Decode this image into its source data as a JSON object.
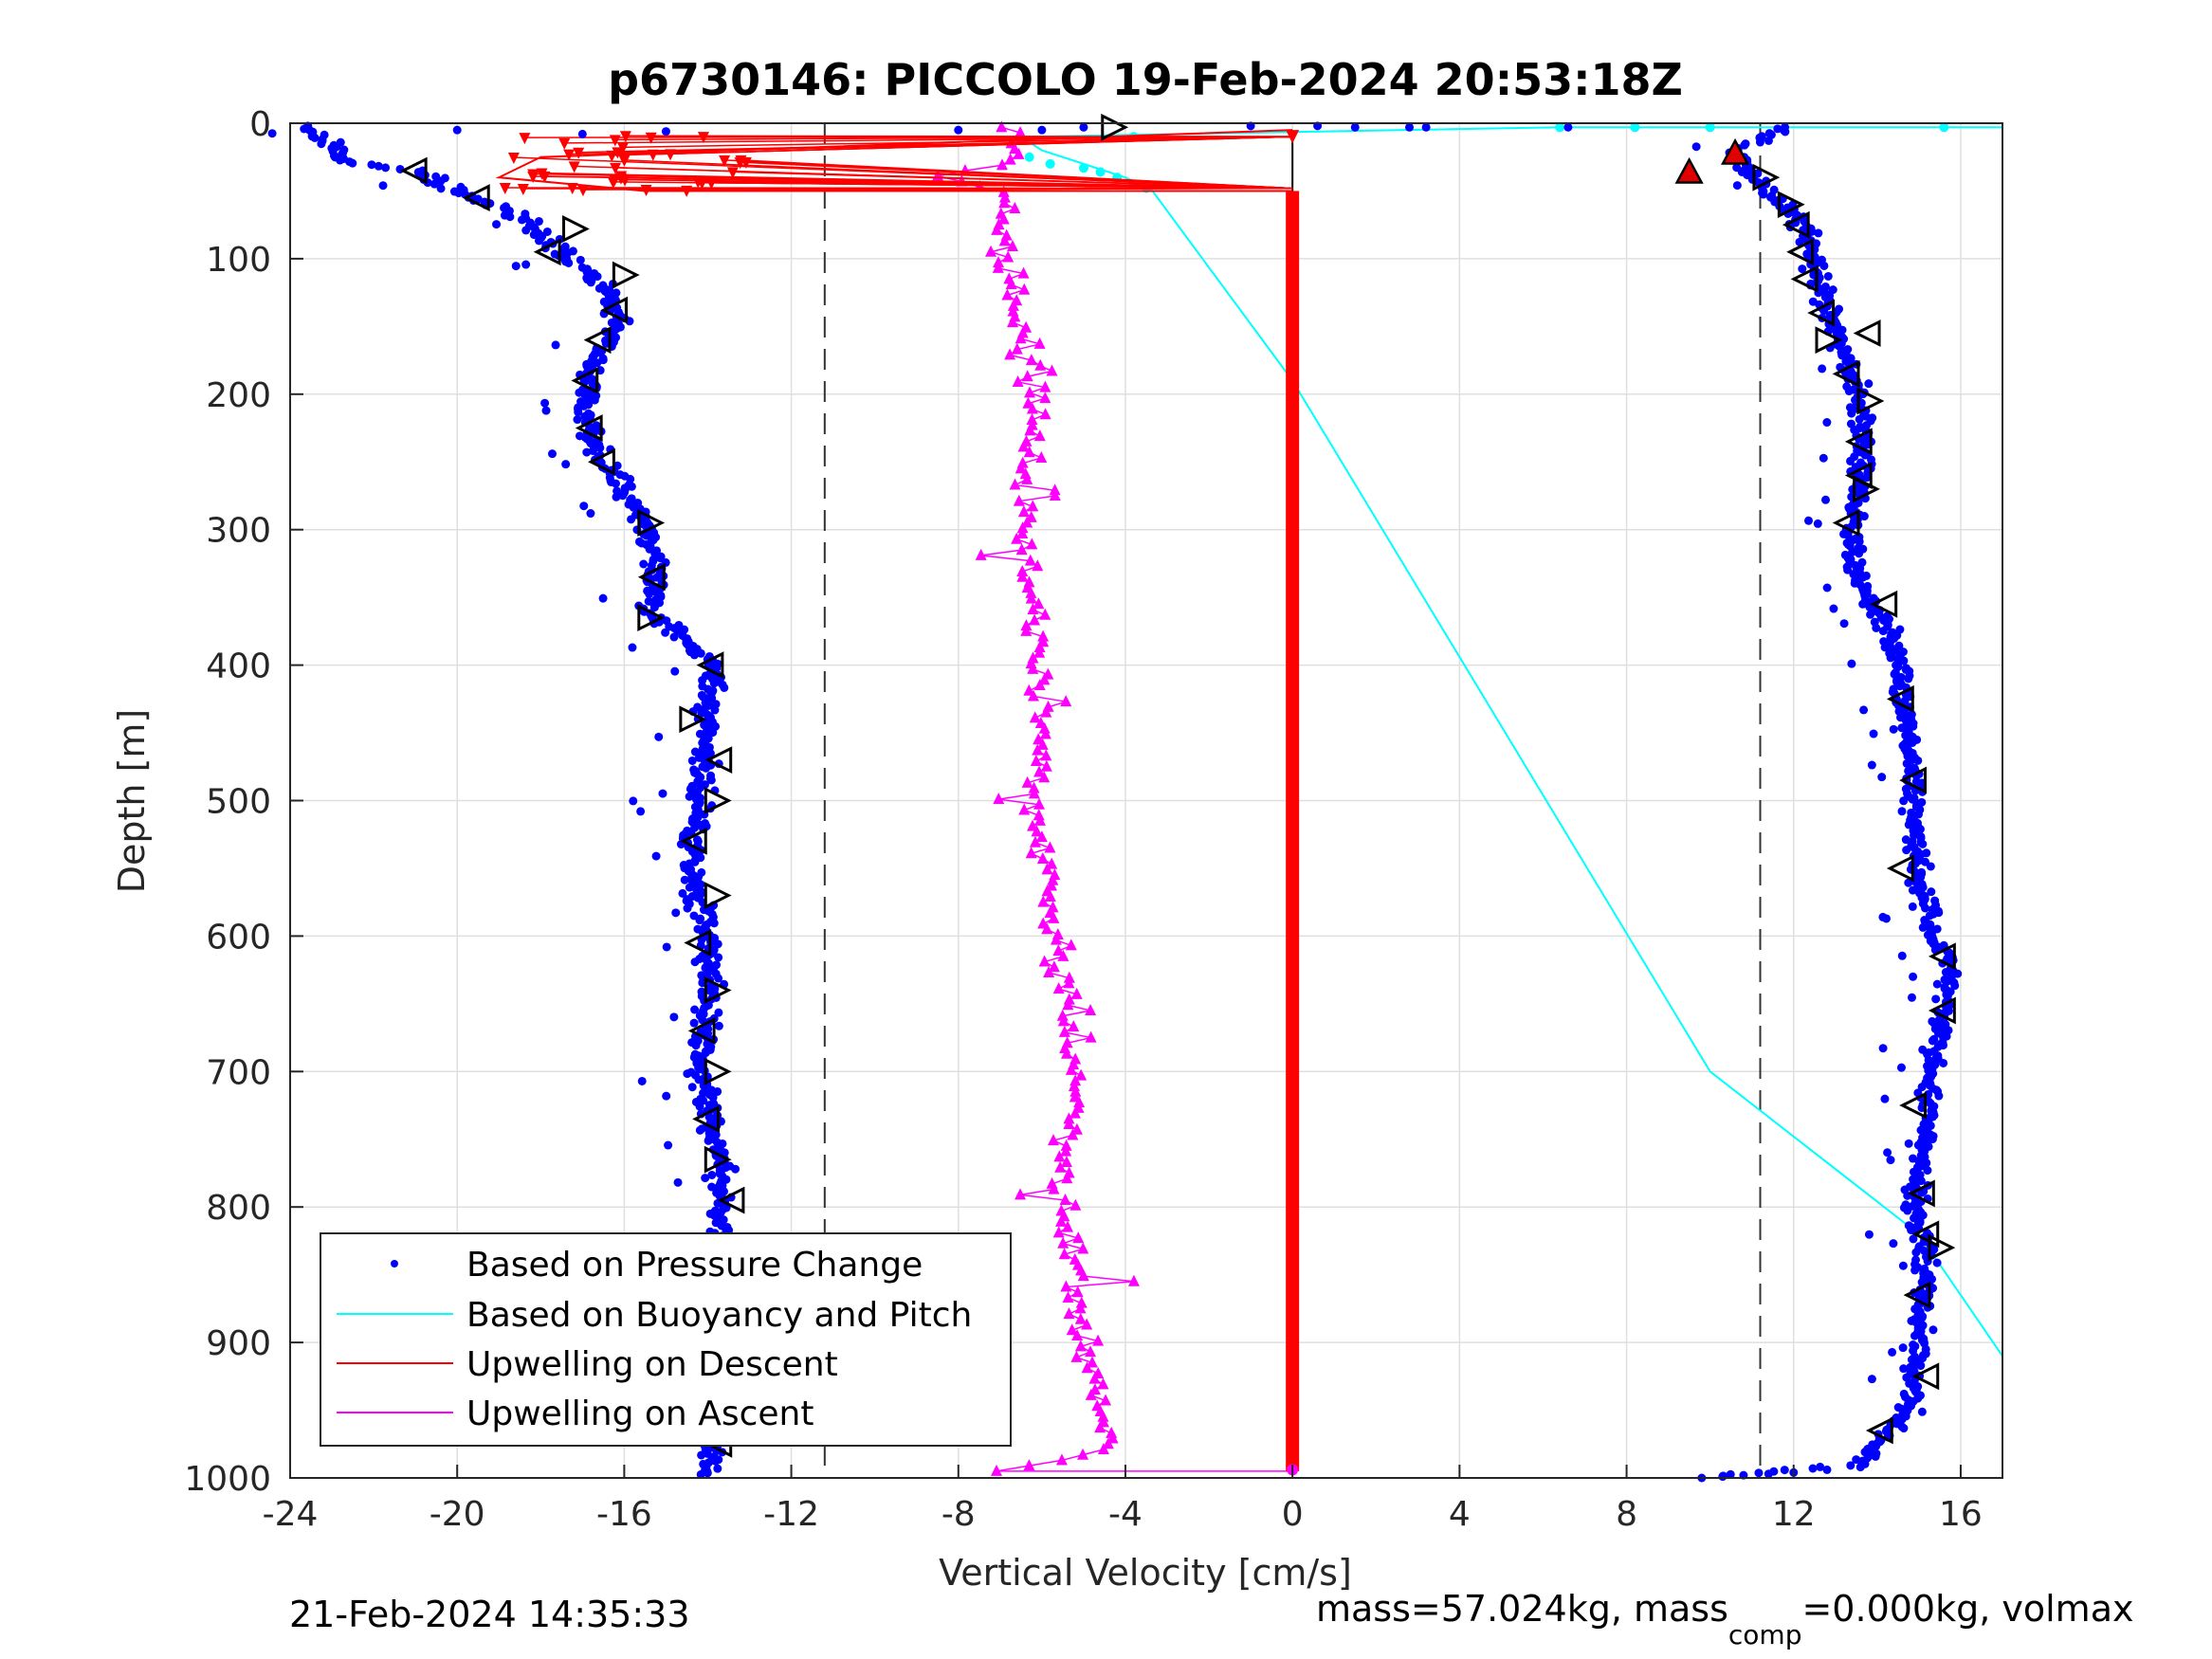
{
  "figure": {
    "timestamp": "21-Feb-2024 14:35:33",
    "footer": {
      "mass_text": "mass=57.024kg, mass",
      "mass_sub": "comp",
      "mass_tail": "=0.000kg, volmax"
    }
  },
  "chart_data": {
    "type": "scatter",
    "title": "p6730146: PICCOLO 19-Feb-2024 20:53:18Z",
    "xlabel": "Vertical Velocity [cm/s]",
    "ylabel": "Depth [m]",
    "xlim": [
      -24,
      17
    ],
    "ylim": [
      1000,
      0
    ],
    "y_reversed": true,
    "grid": true,
    "legend_position": "bottom-left",
    "x_ticks": [
      -24,
      -20,
      -16,
      -12,
      -8,
      -4,
      0,
      4,
      8,
      12,
      16
    ],
    "x_tick_labels": [
      "-24",
      "-20",
      "-16",
      "-12",
      "-8",
      "-4",
      "0",
      "4",
      "8",
      "12",
      "16"
    ],
    "y_ticks": [
      0,
      100,
      200,
      300,
      400,
      500,
      600,
      700,
      800,
      900,
      1000
    ],
    "y_tick_labels": [
      "0",
      "100",
      "200",
      "300",
      "400",
      "500",
      "600",
      "700",
      "800",
      "900",
      "1000"
    ],
    "reference_lines": [
      -11.2,
      11.2
    ],
    "series": [
      {
        "name": "Based on Pressure Change",
        "color": "#0000ff",
        "marker": "dot",
        "style": "points",
        "descent_profile": [
          [
            -23.5,
            5
          ],
          [
            -22.5,
            30
          ],
          [
            -21,
            35
          ],
          [
            -20,
            50
          ],
          [
            -19,
            62
          ],
          [
            -18,
            80
          ],
          [
            -17.5,
            95
          ],
          [
            -16.5,
            120
          ],
          [
            -16.2,
            150
          ],
          [
            -16.8,
            180
          ],
          [
            -17,
            210
          ],
          [
            -16.5,
            250
          ],
          [
            -15.8,
            280
          ],
          [
            -15.4,
            300
          ],
          [
            -15.3,
            330
          ],
          [
            -15.4,
            360
          ],
          [
            -14.5,
            380
          ],
          [
            -13.9,
            400
          ],
          [
            -14,
            450
          ],
          [
            -14.2,
            500
          ],
          [
            -14.4,
            550
          ],
          [
            -14,
            600
          ],
          [
            -14,
            650
          ],
          [
            -14.2,
            700
          ],
          [
            -13.8,
            750
          ],
          [
            -13.6,
            800
          ],
          [
            -13.8,
            850
          ],
          [
            -13.7,
            900
          ],
          [
            -13.8,
            950
          ],
          [
            -14,
            995
          ]
        ],
        "ascent_profile": [
          [
            9.8,
            1000
          ],
          [
            11.5,
            995
          ],
          [
            13.5,
            990
          ],
          [
            14.2,
            970
          ],
          [
            14.8,
            950
          ],
          [
            15,
            900
          ],
          [
            15.2,
            850
          ],
          [
            14.9,
            800
          ],
          [
            15.1,
            750
          ],
          [
            15.3,
            700
          ],
          [
            15.6,
            650
          ],
          [
            15.8,
            620
          ],
          [
            15.3,
            600
          ],
          [
            15,
            550
          ],
          [
            14.9,
            500
          ],
          [
            14.7,
            450
          ],
          [
            14.6,
            400
          ],
          [
            14.2,
            370
          ],
          [
            13.6,
            340
          ],
          [
            13.4,
            320
          ],
          [
            13.4,
            300
          ],
          [
            13.5,
            270
          ],
          [
            13.7,
            240
          ],
          [
            13.6,
            200
          ],
          [
            13.2,
            170
          ],
          [
            12.8,
            140
          ],
          [
            12.5,
            110
          ],
          [
            12.3,
            80
          ],
          [
            11.8,
            60
          ],
          [
            11,
            40
          ],
          [
            10.6,
            20
          ],
          [
            11.8,
            5
          ]
        ],
        "surface_points": [
          [
            -20,
            5
          ],
          [
            -17,
            8
          ],
          [
            -15,
            6
          ],
          [
            -8,
            5
          ],
          [
            -6,
            5
          ],
          [
            -5,
            3
          ],
          [
            -1,
            2
          ],
          [
            0.6,
            2
          ],
          [
            1.5,
            3
          ],
          [
            2.8,
            3
          ],
          [
            3.2,
            3
          ],
          [
            6.6,
            3
          ]
        ]
      },
      {
        "name": "Based on Buoyancy and Pitch",
        "color": "#00ffff",
        "marker": "line",
        "points": [
          [
            17,
            3
          ],
          [
            6.4,
            3
          ],
          [
            -6.5,
            10
          ],
          [
            -6,
            20
          ],
          [
            -5,
            30
          ],
          [
            -4,
            40
          ],
          [
            -3.4,
            48
          ],
          [
            0,
            190
          ],
          [
            5,
            445
          ],
          [
            10,
            700
          ],
          [
            15,
            820
          ],
          [
            17,
            910
          ]
        ]
      },
      {
        "name": "Upwelling on Descent",
        "color": "#ff0000",
        "marker": "triangle-down",
        "top_segment": [
          [
            0,
            5
          ],
          [
            -18,
            25
          ],
          [
            -19,
            40
          ],
          [
            -15.5,
            50
          ],
          [
            0,
            50
          ]
        ],
        "constant_value": 0,
        "from_depth": 50,
        "to_depth": 995
      },
      {
        "name": "Upwelling on Ascent",
        "color": "#ff00ff",
        "marker": "triangle-up",
        "profile": [
          [
            -7,
            995
          ],
          [
            -4.5,
            980
          ],
          [
            -4.6,
            950
          ],
          [
            -5,
            900
          ],
          [
            -5.2,
            850
          ],
          [
            -5.5,
            800
          ],
          [
            -5.4,
            750
          ],
          [
            -5.3,
            700
          ],
          [
            -5.4,
            650
          ],
          [
            -5.7,
            600
          ],
          [
            -6,
            550
          ],
          [
            -6.2,
            500
          ],
          [
            -6,
            450
          ],
          [
            -6.1,
            400
          ],
          [
            -6.2,
            350
          ],
          [
            -6.5,
            300
          ],
          [
            -6.3,
            250
          ],
          [
            -6.1,
            200
          ],
          [
            -6.5,
            150
          ],
          [
            -6.9,
            100
          ],
          [
            -7,
            50
          ],
          [
            -8.5,
            40
          ],
          [
            -6.7,
            30
          ],
          [
            -6.6,
            10
          ],
          [
            -6.7,
            2
          ]
        ]
      }
    ],
    "pitch_markers": {
      "descent": [
        [
          -21,
          35,
          "left"
        ],
        [
          -19.5,
          55,
          "left"
        ],
        [
          -17.2,
          78,
          "right"
        ],
        [
          -17.8,
          95,
          "left"
        ],
        [
          -16,
          112,
          "right"
        ],
        [
          -16.2,
          138,
          "left"
        ],
        [
          -16.6,
          160,
          "left"
        ],
        [
          -16.9,
          190,
          "left"
        ],
        [
          -16.8,
          225,
          "left"
        ],
        [
          -16.5,
          250,
          "left"
        ],
        [
          -15.4,
          295,
          "right"
        ],
        [
          -15.3,
          335,
          "left"
        ],
        [
          -15.4,
          365,
          "right"
        ],
        [
          -13.9,
          400,
          "left"
        ],
        [
          -14.4,
          440,
          "right"
        ],
        [
          -13.7,
          470,
          "left"
        ],
        [
          -13.8,
          500,
          "right"
        ],
        [
          -14.3,
          530,
          "left"
        ],
        [
          -13.8,
          570,
          "right"
        ],
        [
          -14.2,
          605,
          "left"
        ],
        [
          -13.8,
          640,
          "right"
        ],
        [
          -14.1,
          670,
          "left"
        ],
        [
          -13.8,
          700,
          "right"
        ],
        [
          -14,
          735,
          "left"
        ],
        [
          -13.8,
          765,
          "right"
        ],
        [
          -13.4,
          795,
          "left"
        ],
        [
          -13.8,
          965,
          "right"
        ],
        [
          -13.7,
          975,
          "left"
        ],
        [
          -4.3,
          3,
          "right"
        ]
      ],
      "ascent": [
        [
          11.3,
          40,
          "right"
        ],
        [
          11.9,
          60,
          "right"
        ],
        [
          12.1,
          75,
          "left"
        ],
        [
          12.2,
          95,
          "left"
        ],
        [
          12.3,
          115,
          "left"
        ],
        [
          12.7,
          140,
          "left"
        ],
        [
          13.8,
          155,
          "left"
        ],
        [
          12.8,
          160,
          "right"
        ],
        [
          13.3,
          185,
          "left"
        ],
        [
          13.8,
          205,
          "right"
        ],
        [
          13.6,
          235,
          "left"
        ],
        [
          13.6,
          260,
          "left"
        ],
        [
          13.7,
          270,
          "right"
        ],
        [
          13.3,
          295,
          "left"
        ],
        [
          14.2,
          355,
          "left"
        ],
        [
          14.6,
          425,
          "left"
        ],
        [
          14.9,
          485,
          "left"
        ],
        [
          14.6,
          550,
          "left"
        ],
        [
          15.6,
          615,
          "left"
        ],
        [
          15.6,
          655,
          "left"
        ],
        [
          14.9,
          725,
          "left"
        ],
        [
          15.1,
          790,
          "left"
        ],
        [
          15.2,
          820,
          "left"
        ],
        [
          15.5,
          830,
          "right"
        ],
        [
          15,
          865,
          "left"
        ],
        [
          15.2,
          925,
          "left"
        ],
        [
          14.1,
          965,
          "left"
        ]
      ]
    },
    "highlight_markers": [
      [
        9.5,
        36
      ],
      [
        10.6,
        22
      ]
    ]
  }
}
